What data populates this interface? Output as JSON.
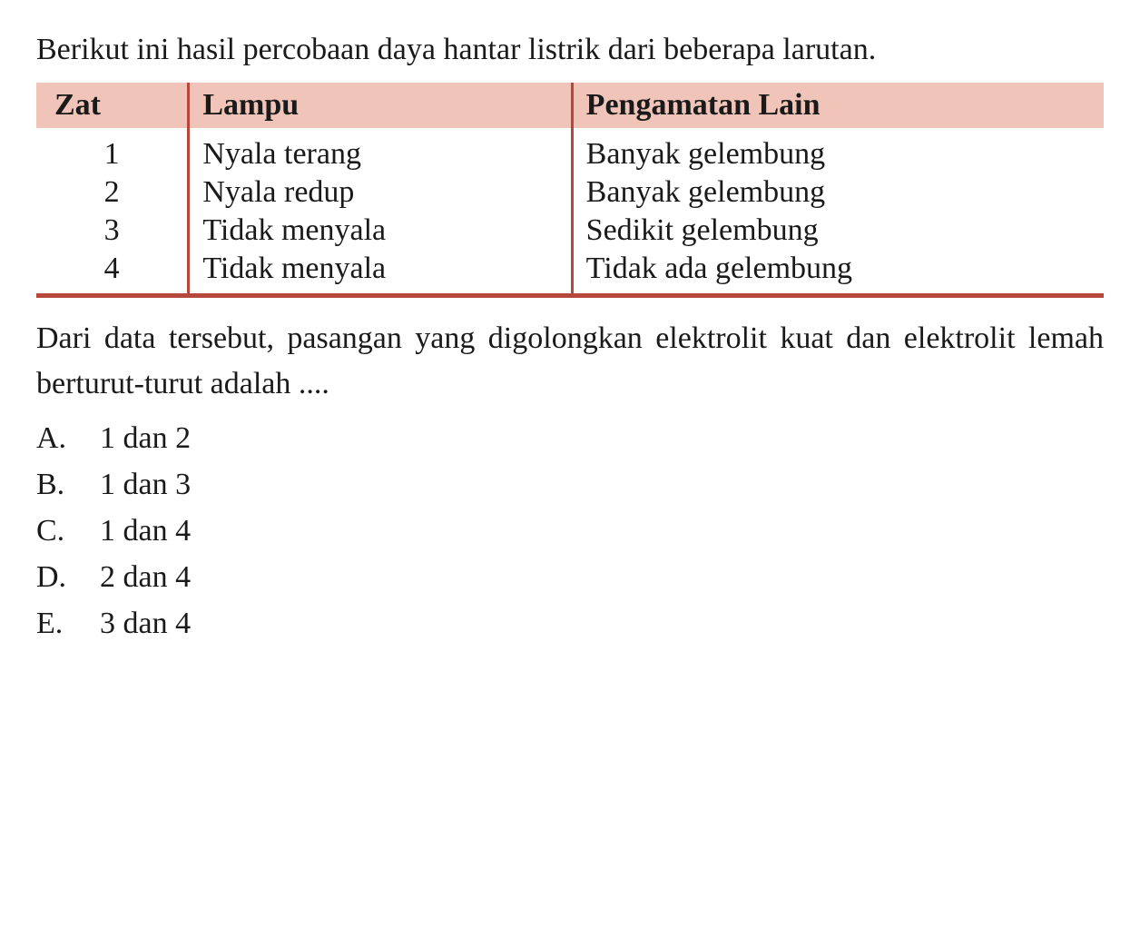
{
  "intro_text": "Berikut ini hasil percobaan daya hantar listrik dari beberapa larutan.",
  "table": {
    "header_bg_color": "#f0c4b8",
    "border_color": "#b5483a",
    "columns": [
      "Zat",
      "Lampu",
      "Pengamatan Lain"
    ],
    "rows": [
      [
        "1",
        "Nyala terang",
        "Banyak gelembung"
      ],
      [
        "2",
        "Nyala redup",
        "Banyak gelembung"
      ],
      [
        "3",
        "Tidak menyala",
        "Sedikit gelembung"
      ],
      [
        "4",
        "Tidak menyala",
        "Tidak ada gelembung"
      ]
    ]
  },
  "question_text": "Dari data tersebut, pasangan yang digolongkan elektrolit kuat dan elektrolit lemah berturut-turut adalah ....",
  "options": [
    {
      "letter": "A.",
      "text": "1 dan 2"
    },
    {
      "letter": "B.",
      "text": "1 dan 3"
    },
    {
      "letter": "C.",
      "text": "1 dan 4"
    },
    {
      "letter": "D.",
      "text": "2 dan 4"
    },
    {
      "letter": "E.",
      "text": "3 dan 4"
    }
  ],
  "fontsize_body": 34,
  "text_color": "#1a1a1a",
  "background_color": "#ffffff"
}
